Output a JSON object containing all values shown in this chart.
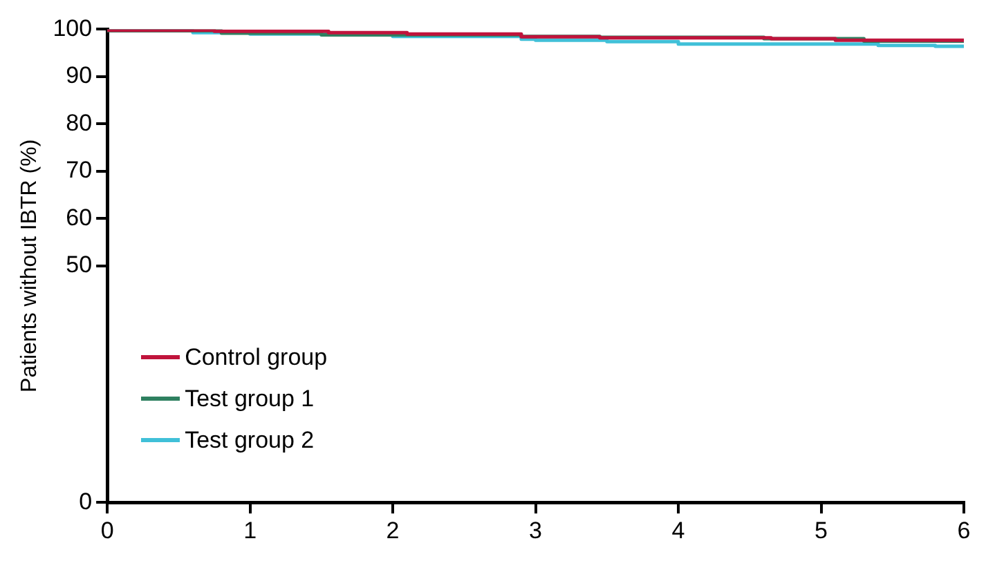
{
  "chart_data": {
    "type": "step",
    "ylabel": "Patients without IBTR (%)",
    "xlim": [
      0,
      6
    ],
    "xticks": [
      0,
      1,
      2,
      3,
      4,
      5,
      6
    ],
    "ylim": [
      0,
      100
    ],
    "yticks": [
      0,
      50,
      60,
      70,
      80,
      90,
      100
    ],
    "grid": false,
    "legend": "bottom left",
    "marker": "none",
    "line_style": "solid",
    "series": [
      {
        "name": "Control group",
        "color": "#c0143c",
        "x": [
          0,
          0.75,
          1.55,
          2.1,
          2.9,
          3.45,
          4.65,
          5.1,
          5.85,
          6
        ],
        "values": [
          100,
          99.8,
          99.6,
          99.3,
          99.0,
          98.4,
          98.2,
          98.0,
          97.7,
          97.7
        ]
      },
      {
        "name": "Test group 1",
        "color": "#2e8060",
        "x": [
          0,
          0.8,
          1.5,
          2.9,
          3.45,
          4.6,
          5.3,
          6
        ],
        "values": [
          100,
          99.7,
          99.2,
          98.8,
          98.5,
          98.3,
          98.0,
          97.5
        ]
      },
      {
        "name": "Test group 2",
        "color": "#40c0d8",
        "x": [
          0,
          0.6,
          1.0,
          2.0,
          2.9,
          3.0,
          3.5,
          4.0,
          5.4,
          5.8,
          6
        ],
        "values": [
          100,
          99.7,
          99.3,
          99.0,
          98.5,
          97.9,
          97.7,
          97.4,
          96.9,
          96.6,
          96.4
        ]
      }
    ]
  }
}
